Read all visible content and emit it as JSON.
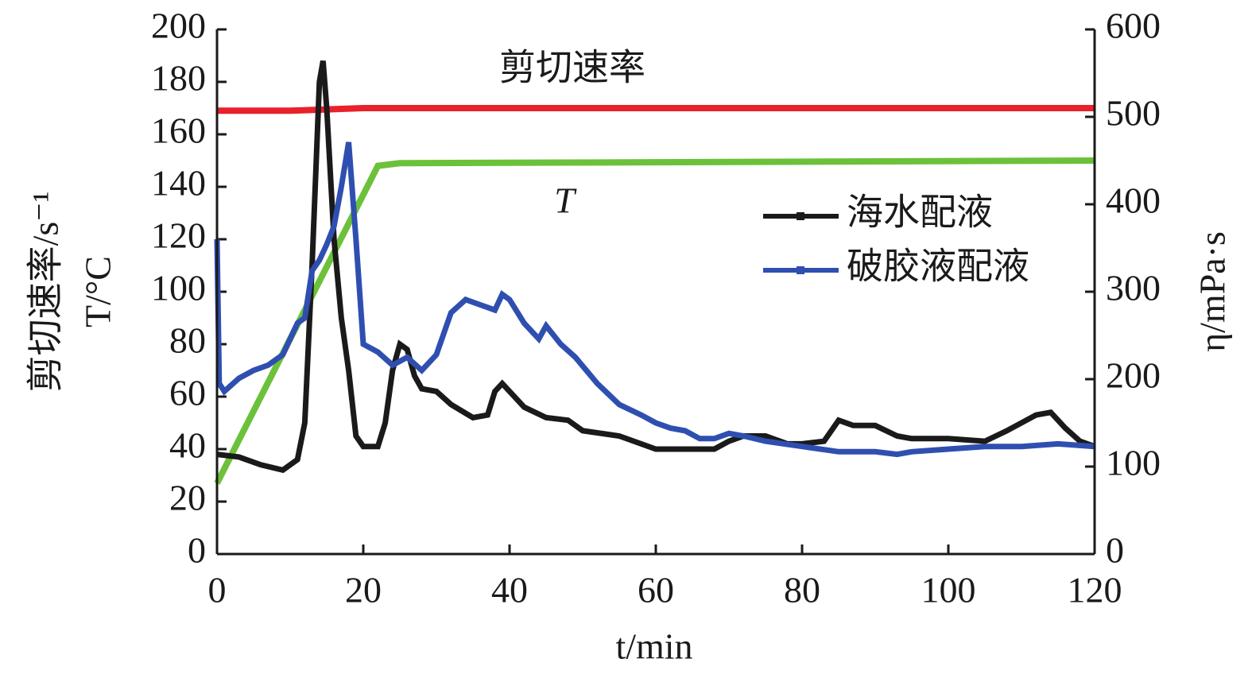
{
  "chart_data": {
    "type": "line",
    "x_label": "t/min",
    "y_label": "剪切速率/s⁻¹",
    "y_label_2": "T/°C",
    "y2_label": "η/mPa·s",
    "xlim": [
      0,
      120
    ],
    "xticks": [
      0,
      20,
      40,
      60,
      80,
      100,
      120
    ],
    "ylim": [
      0,
      200
    ],
    "yticks": [
      0,
      20,
      40,
      60,
      80,
      100,
      120,
      140,
      160,
      180,
      200
    ],
    "y2lim": [
      0,
      600
    ],
    "y2ticks": [
      0,
      100,
      200,
      300,
      400,
      500,
      600
    ],
    "legend": "right",
    "series": [
      {
        "name": "剪切速率",
        "color": "#e8212b",
        "axis": "y",
        "x": [
          0,
          10,
          20,
          120
        ],
        "values": [
          169,
          169,
          170,
          170
        ]
      },
      {
        "name": "T",
        "color": "#6cc13a",
        "axis": "y",
        "x": [
          0,
          22,
          25,
          120
        ],
        "values": [
          27,
          148,
          149,
          150
        ]
      },
      {
        "name": "海水配液",
        "color": "#1a1a1a",
        "axis": "y2",
        "x": [
          0,
          3,
          6,
          9,
          11,
          12,
          13,
          14,
          14.5,
          15,
          16,
          17,
          18,
          19,
          20,
          22,
          23,
          24,
          25,
          26,
          27,
          28,
          30,
          32,
          35,
          37,
          38,
          39,
          40,
          42,
          45,
          48,
          50,
          55,
          60,
          65,
          68,
          70,
          72,
          75,
          78,
          80,
          83,
          85,
          87,
          90,
          93,
          95,
          100,
          105,
          108,
          112,
          114,
          116,
          118,
          120
        ],
        "values": [
          114,
          111,
          102,
          96,
          108,
          150,
          330,
          540,
          564,
          510,
          360,
          270,
          210,
          135,
          123,
          123,
          150,
          210,
          240,
          234,
          204,
          189,
          186,
          171,
          156,
          159,
          186,
          195,
          186,
          168,
          156,
          153,
          141,
          135,
          120,
          120,
          120,
          129,
          135,
          135,
          126,
          126,
          129,
          153,
          147,
          147,
          135,
          132,
          132,
          129,
          141,
          159,
          162,
          144,
          129,
          123
        ]
      },
      {
        "name": "破胶液配液",
        "color": "#2f4fb0",
        "axis": "y2",
        "x": [
          0,
          0.3,
          1,
          3,
          5,
          7,
          9,
          11,
          12,
          13,
          14,
          15,
          16,
          17,
          18,
          19,
          20,
          22,
          24,
          26,
          28,
          30,
          32,
          34,
          36,
          38,
          39,
          40,
          42,
          44,
          45,
          47,
          49,
          52,
          55,
          58,
          60,
          62,
          64,
          66,
          68,
          70,
          72,
          75,
          80,
          85,
          90,
          93,
          95,
          100,
          105,
          110,
          115,
          120
        ],
        "values": [
          360,
          195,
          186,
          201,
          210,
          216,
          228,
          264,
          270,
          324,
          336,
          354,
          375,
          420,
          471,
          360,
          240,
          231,
          216,
          225,
          210,
          228,
          276,
          291,
          285,
          279,
          297,
          291,
          264,
          246,
          261,
          240,
          225,
          195,
          171,
          159,
          150,
          144,
          141,
          132,
          132,
          138,
          135,
          129,
          123,
          117,
          117,
          114,
          117,
          120,
          123,
          123,
          126,
          123
        ]
      }
    ]
  }
}
